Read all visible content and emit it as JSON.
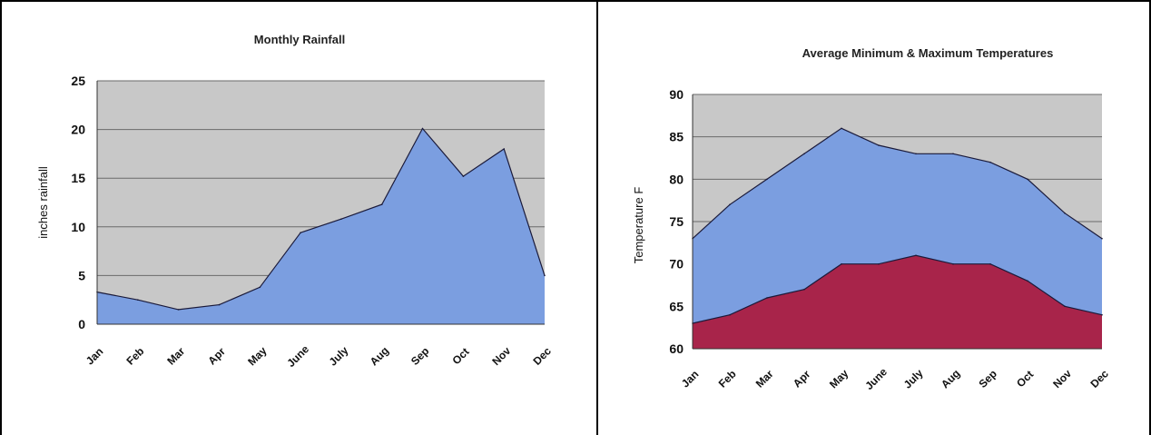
{
  "chart_data": [
    {
      "type": "area",
      "title": "Monthly Rainfall",
      "xlabel": "",
      "ylabel": "inches rainfall",
      "ylim": [
        0,
        25
      ],
      "yticks": [
        "0",
        "5",
        "10",
        "15",
        "20",
        "25"
      ],
      "categories": [
        "Jan",
        "Feb",
        "Mar",
        "Apr",
        "May",
        "June",
        "July",
        "Aug",
        "Sep",
        "Oct",
        "Nov",
        "Dec"
      ],
      "series": [
        {
          "values": [
            3.3,
            2.5,
            1.5,
            2.0,
            3.8,
            9.4,
            10.8,
            12.3,
            20.1,
            15.2,
            18.0,
            5.0
          ]
        }
      ],
      "grid": true,
      "colors": {
        "plot_bg": "#c8c8c8",
        "fill": "#7b9ee0",
        "line": "#1a1a3a"
      }
    },
    {
      "type": "area",
      "title": "Average Minimum & Maximum Temperatures",
      "xlabel": "",
      "ylabel": "Temperature F",
      "ylim": [
        60,
        90
      ],
      "yticks": [
        "60",
        "65",
        "70",
        "75",
        "80",
        "85",
        "90"
      ],
      "categories": [
        "Jan",
        "Feb",
        "Mar",
        "Apr",
        "May",
        "June",
        "July",
        "Aug",
        "Sep",
        "Oct",
        "Nov",
        "Dec"
      ],
      "series": [
        {
          "values": [
            73,
            77,
            80,
            83,
            86,
            84,
            83,
            83,
            82,
            80,
            76,
            73
          ]
        },
        {
          "values": [
            63,
            64,
            66,
            67,
            70,
            70,
            71,
            70,
            70,
            68,
            65,
            64
          ]
        }
      ],
      "grid": true,
      "colors": {
        "plot_bg": "#c8c8c8",
        "fill_max": "#7b9ee0",
        "fill_min": "#a8244a",
        "line": "#1a1a3a"
      }
    }
  ]
}
